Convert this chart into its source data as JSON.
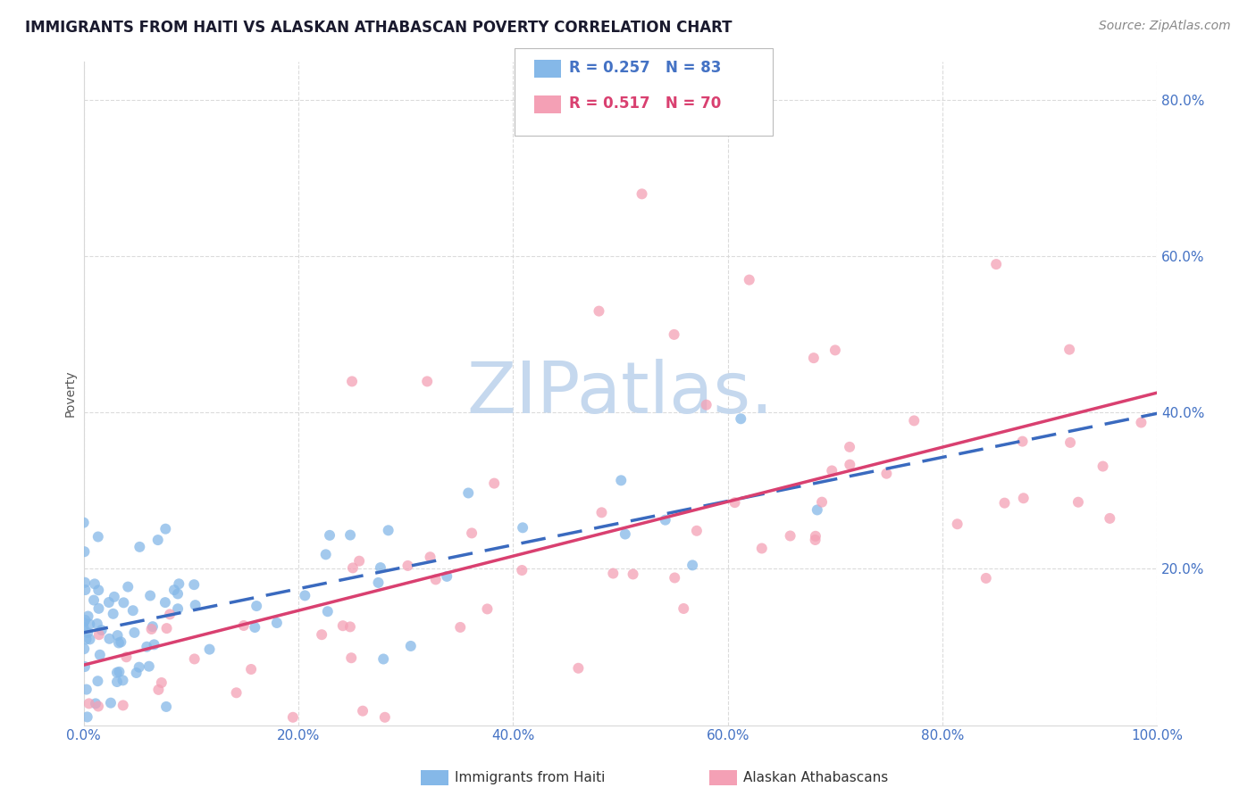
{
  "title": "IMMIGRANTS FROM HAITI VS ALASKAN ATHABASCAN POVERTY CORRELATION CHART",
  "source": "Source: ZipAtlas.com",
  "ylabel": "Poverty",
  "legend_label1": "Immigrants from Haiti",
  "legend_label2": "Alaskan Athabascans",
  "R1": 0.257,
  "N1": 83,
  "R2": 0.517,
  "N2": 70,
  "color1": "#85b8e8",
  "color2": "#f4a0b5",
  "line_color1": "#3a6abf",
  "line_color2": "#d94070",
  "watermark_color": "#c5d8ee",
  "title_color": "#1a1a2e",
  "source_color": "#888888",
  "ylabel_color": "#555555",
  "tick_color": "#4472c4",
  "grid_color": "#d8d8d8",
  "xlim": [
    0.0,
    1.0
  ],
  "ylim": [
    0.0,
    0.85
  ],
  "bg_color": "#ffffff"
}
